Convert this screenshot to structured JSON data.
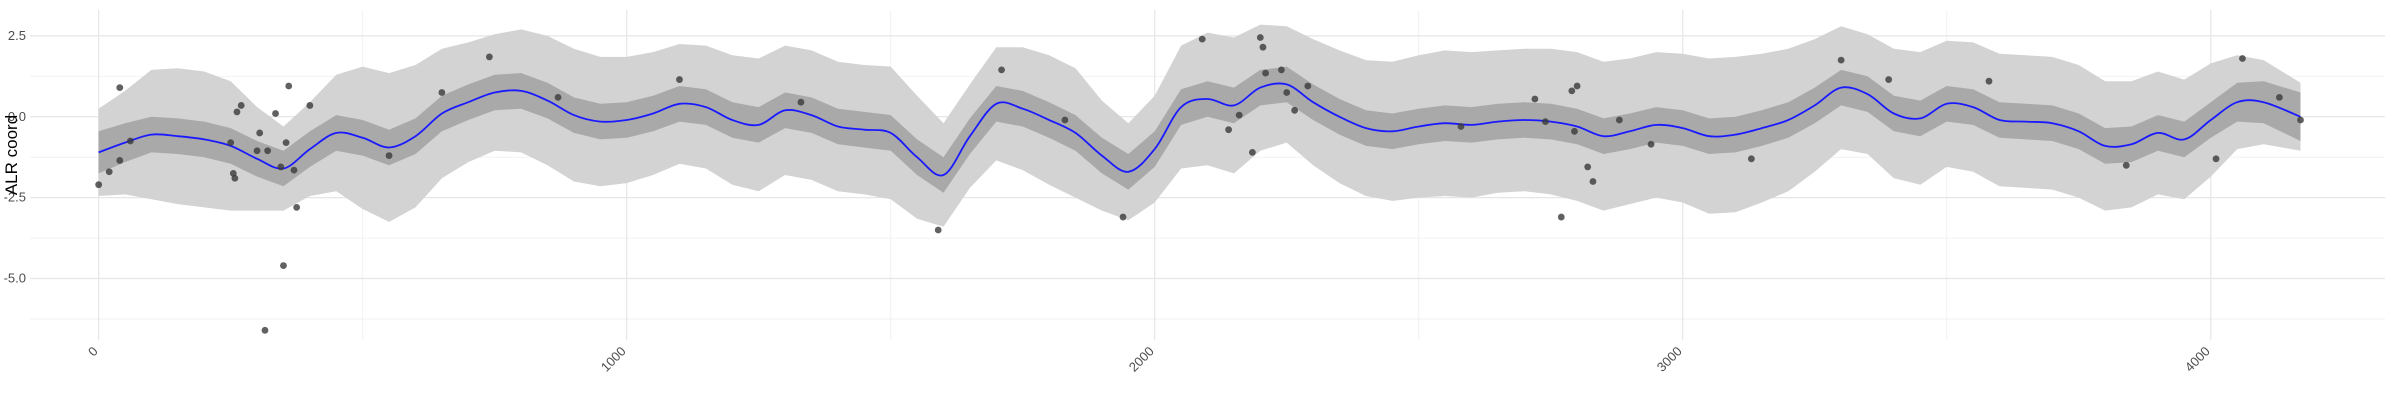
{
  "chart_data": {
    "type": "scatter",
    "ylabel": "ALR coord",
    "xlabel": "",
    "title": "",
    "xlim": [
      -130,
      4330
    ],
    "ylim": [
      -6.9,
      3.3
    ],
    "x_ticks": [
      0,
      1000,
      2000,
      3000,
      4000
    ],
    "x_tick_labels": [
      "0",
      "1000",
      "2000",
      "3000",
      "4000"
    ],
    "y_ticks": [
      2.5,
      0.0,
      -2.5,
      -5.0
    ],
    "y_tick_labels": [
      "2.5",
      "0.0",
      "-2.5",
      "-5.0"
    ],
    "grid": true,
    "colors": {
      "fit_line": "#1a1aff",
      "inner_band": "#a9a9a9",
      "outer_band": "#d3d3d3",
      "points": "#3a3a3a",
      "grid_major": "#e6e6e6",
      "grid_minor": "#f2f2f2"
    },
    "fit": {
      "x": [
        0,
        50,
        100,
        150,
        200,
        250,
        300,
        350,
        400,
        450,
        500,
        550,
        600,
        650,
        700,
        750,
        800,
        850,
        900,
        950,
        1000,
        1050,
        1100,
        1150,
        1200,
        1250,
        1300,
        1350,
        1400,
        1450,
        1500,
        1550,
        1600,
        1650,
        1700,
        1750,
        1800,
        1850,
        1900,
        1950,
        2000,
        2050,
        2100,
        2150,
        2200,
        2250,
        2300,
        2350,
        2400,
        2450,
        2500,
        2550,
        2600,
        2650,
        2700,
        2750,
        2800,
        2850,
        2900,
        2950,
        3000,
        3050,
        3100,
        3150,
        3200,
        3250,
        3300,
        3350,
        3400,
        3450,
        3500,
        3550,
        3600,
        3650,
        3700,
        3750,
        3800,
        3850,
        3900,
        3950,
        4000,
        4050,
        4100,
        4170
      ],
      "y": [
        -1.1,
        -0.8,
        -0.55,
        -0.6,
        -0.7,
        -0.9,
        -1.3,
        -1.6,
        -1.0,
        -0.5,
        -0.65,
        -0.95,
        -0.6,
        0.1,
        0.45,
        0.75,
        0.8,
        0.5,
        0.05,
        -0.15,
        -0.1,
        0.1,
        0.4,
        0.3,
        -0.1,
        -0.25,
        0.2,
        0.05,
        -0.3,
        -0.4,
        -0.5,
        -1.25,
        -1.8,
        -0.6,
        0.4,
        0.25,
        -0.1,
        -0.5,
        -1.2,
        -1.7,
        -1.0,
        0.3,
        0.55,
        0.35,
        0.9,
        1.0,
        0.45,
        0.0,
        -0.35,
        -0.45,
        -0.3,
        -0.2,
        -0.25,
        -0.15,
        -0.1,
        -0.15,
        -0.3,
        -0.6,
        -0.45,
        -0.25,
        -0.35,
        -0.6,
        -0.55,
        -0.35,
        -0.1,
        0.35,
        0.9,
        0.7,
        0.1,
        -0.05,
        0.4,
        0.3,
        -0.1,
        -0.15,
        -0.2,
        -0.45,
        -0.9,
        -0.85,
        -0.5,
        -0.7,
        -0.1,
        0.45,
        0.45,
        0.0
      ],
      "inner_halfwidth": [
        0.65,
        0.6,
        0.55,
        0.55,
        0.55,
        0.55,
        0.55,
        0.55,
        0.55,
        0.55,
        0.55,
        0.55,
        0.55,
        0.55,
        0.55,
        0.55,
        0.55,
        0.55,
        0.55,
        0.55,
        0.55,
        0.55,
        0.55,
        0.55,
        0.55,
        0.55,
        0.55,
        0.55,
        0.55,
        0.55,
        0.55,
        0.55,
        0.55,
        0.55,
        0.55,
        0.55,
        0.55,
        0.55,
        0.55,
        0.55,
        0.55,
        0.55,
        0.55,
        0.55,
        0.55,
        0.55,
        0.55,
        0.55,
        0.55,
        0.55,
        0.55,
        0.55,
        0.55,
        0.55,
        0.55,
        0.55,
        0.55,
        0.55,
        0.55,
        0.55,
        0.55,
        0.55,
        0.55,
        0.55,
        0.55,
        0.55,
        0.55,
        0.55,
        0.55,
        0.55,
        0.55,
        0.55,
        0.55,
        0.55,
        0.55,
        0.55,
        0.55,
        0.55,
        0.55,
        0.55,
        0.55,
        0.6,
        0.65,
        0.75
      ],
      "outer_halfwidth": [
        1.35,
        1.6,
        2.0,
        2.1,
        2.1,
        2.0,
        1.6,
        1.3,
        1.45,
        1.8,
        2.2,
        2.3,
        2.2,
        2.0,
        1.85,
        1.8,
        1.9,
        2.0,
        2.05,
        2.0,
        1.95,
        1.9,
        1.85,
        1.9,
        2.0,
        2.05,
        2.0,
        2.0,
        2.0,
        2.0,
        2.05,
        1.9,
        1.6,
        1.6,
        1.75,
        1.9,
        2.0,
        2.0,
        1.7,
        1.5,
        1.65,
        1.9,
        2.05,
        2.1,
        1.95,
        1.8,
        1.95,
        2.05,
        2.1,
        2.15,
        2.2,
        2.25,
        2.25,
        2.2,
        2.2,
        2.25,
        2.3,
        2.3,
        2.25,
        2.25,
        2.3,
        2.4,
        2.4,
        2.3,
        2.2,
        2.05,
        1.9,
        1.85,
        2.0,
        2.05,
        1.95,
        2.0,
        2.05,
        2.05,
        2.05,
        2.05,
        2.0,
        1.95,
        1.9,
        1.85,
        1.75,
        1.45,
        1.3,
        1.05
      ]
    },
    "points": {
      "x": [
        0,
        20,
        40,
        40,
        60,
        250,
        255,
        258,
        262,
        270,
        300,
        305,
        315,
        320,
        335,
        345,
        350,
        355,
        360,
        370,
        375,
        400,
        550,
        650,
        740,
        870,
        1100,
        1330,
        1590,
        1710,
        1830,
        1940,
        2090,
        2140,
        2160,
        2185,
        2200,
        2205,
        2210,
        2240,
        2250,
        2265,
        2290,
        2580,
        2720,
        2740,
        2770,
        2790,
        2795,
        2800,
        2820,
        2830,
        2880,
        2940,
        3130,
        3300,
        3390,
        3580,
        3840,
        4010,
        4060,
        4130,
        4170
      ],
      "y": [
        -2.1,
        -1.7,
        0.9,
        -1.35,
        -0.75,
        -0.8,
        -1.75,
        -1.9,
        0.15,
        0.35,
        -1.05,
        -0.5,
        -6.6,
        -1.05,
        0.1,
        -1.55,
        -4.6,
        -0.8,
        0.95,
        -1.65,
        -2.8,
        0.35,
        -1.2,
        0.75,
        1.85,
        0.6,
        1.15,
        0.45,
        -3.5,
        1.45,
        -0.1,
        -3.1,
        2.4,
        -0.4,
        0.05,
        -1.1,
        2.45,
        2.15,
        1.35,
        1.45,
        0.75,
        0.2,
        0.95,
        -0.3,
        0.55,
        -0.15,
        -3.1,
        0.8,
        -0.45,
        0.95,
        -1.55,
        -2.0,
        -0.1,
        -0.85,
        -1.3,
        1.75,
        1.15,
        1.1,
        -1.5,
        -1.3,
        1.8,
        0.6,
        -0.1
      ]
    }
  }
}
